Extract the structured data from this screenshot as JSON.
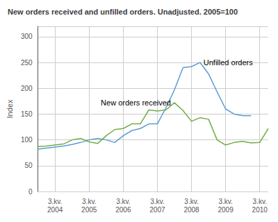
{
  "chart_data": {
    "type": "line",
    "title": "New orders received and unfilled orders. Unadjusted. 2005=100",
    "ylabel": "Index",
    "categories": [
      null,
      null,
      "3.kv.\n2004",
      null,
      null,
      null,
      "3.kv.\n2005",
      null,
      null,
      null,
      "3.kv.\n2006",
      null,
      null,
      null,
      "3.kv.\n2007",
      null,
      null,
      null,
      "3.kv.\n2008",
      null,
      null,
      null,
      "3.kv.\n2009",
      null,
      null,
      null,
      "3.kv.\n2010",
      null
    ],
    "series": [
      {
        "name": "Unfilled orders",
        "color": "#5b9bd5",
        "values": [
          82,
          84,
          86,
          88,
          91,
          95,
          100,
          103,
          100,
          95,
          108,
          118,
          122,
          131,
          131,
          162,
          197,
          240,
          242,
          250,
          228,
          193,
          160,
          150,
          147,
          147,
          null,
          null
        ]
      },
      {
        "name": "New orders received",
        "color": "#70ad47",
        "values": [
          87,
          88,
          90,
          92,
          100,
          103,
          96,
          93,
          108,
          120,
          122,
          131,
          131,
          158,
          156,
          158,
          172,
          157,
          136,
          143,
          140,
          100,
          90,
          95,
          97,
          94,
          95,
          122
        ]
      }
    ],
    "ylim": [
      0,
      320
    ],
    "yticks": [
      0,
      50,
      100,
      150,
      200,
      250,
      300
    ],
    "grid": true
  }
}
